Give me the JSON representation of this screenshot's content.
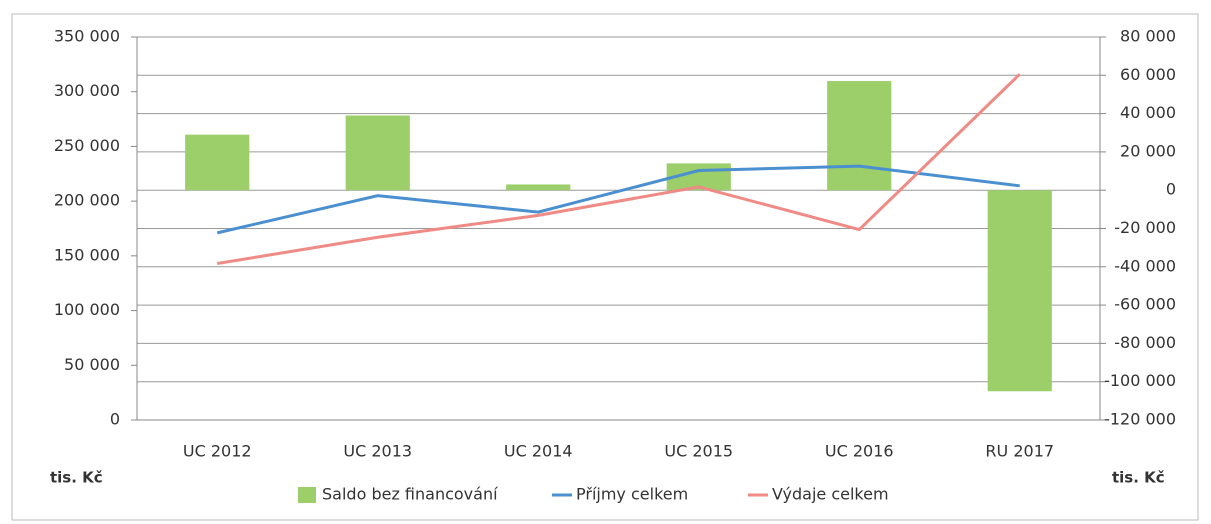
{
  "chart_data": {
    "type": "combo",
    "categories": [
      "UC 2012",
      "UC 2013",
      "UC 2014",
      "UC 2015",
      "UC 2016",
      "RU 2017"
    ],
    "series": [
      {
        "name": "Saldo bez financování",
        "type": "bar",
        "axis": "y2",
        "color": "#9ccf6a",
        "values": [
          29000,
          39000,
          3000,
          14000,
          57000,
          -105000
        ]
      },
      {
        "name": "Příjmy celkem",
        "type": "line",
        "color": "#4a8fcf",
        "values": [
          171000,
          205000,
          190000,
          228000,
          232000,
          214000
        ]
      },
      {
        "name": "Výdaje celkem",
        "type": "line",
        "color": "#ef8a85",
        "values": [
          143000,
          167000,
          187000,
          213000,
          174000,
          316000
        ]
      }
    ],
    "ylim": [
      0,
      350000
    ],
    "yticks": [
      0,
      {
        "value": 50000,
        "label": "50 000"
      },
      {
        "value": 100000,
        "label": "100 000"
      },
      {
        "value": 150000,
        "label": "150 000"
      },
      {
        "value": 200000,
        "label": "200 000"
      },
      {
        "value": 250000,
        "label": "250 000"
      },
      {
        "value": 300000,
        "label": "300 000"
      },
      {
        "value": 350000,
        "label": "350 000"
      }
    ],
    "y2lim": [
      -120000,
      80000
    ],
    "y2ticks": [
      {
        "value": -120000,
        "label": "-120 000"
      },
      {
        "value": -100000,
        "label": "-100 000"
      },
      {
        "value": -80000,
        "label": "-80 000"
      },
      {
        "value": -60000,
        "label": "-60 000"
      },
      {
        "value": -40000,
        "label": "-40 000"
      },
      {
        "value": -20000,
        "label": "-20 000"
      },
      0,
      {
        "value": 20000,
        "label": "20 000"
      },
      {
        "value": 40000,
        "label": "40 000"
      },
      {
        "value": 60000,
        "label": "60 000"
      },
      {
        "value": 80000,
        "label": "80 000"
      }
    ],
    "ylabel": "tis. Kč",
    "y2label": "tis. Kč",
    "grid": true,
    "legend": "bottom"
  }
}
